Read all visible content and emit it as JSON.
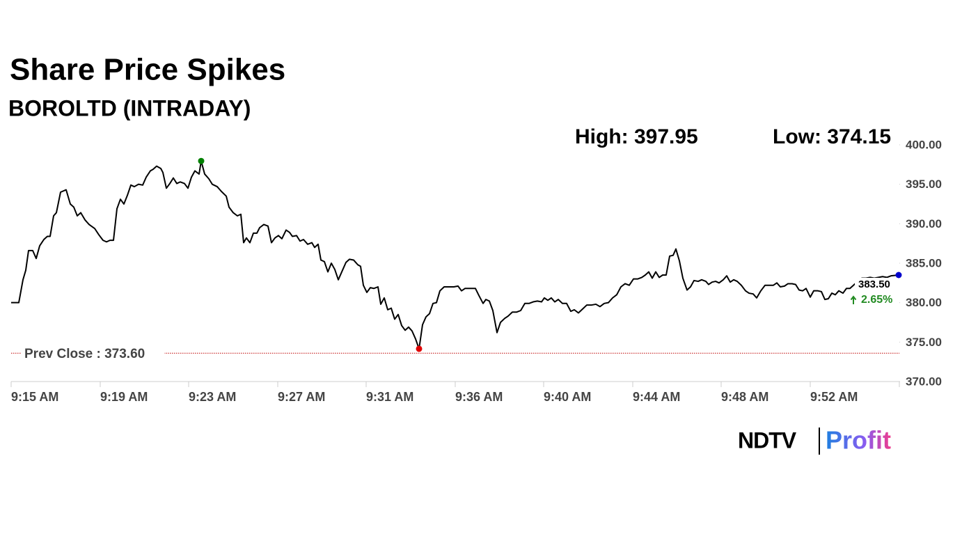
{
  "chart_data": {
    "type": "line",
    "title": "Share Price Spikes",
    "subtitle": "BOROLTD (INTRADAY)",
    "x": [
      0,
      11,
      17,
      21,
      25,
      31,
      36,
      41,
      47,
      52,
      56,
      61,
      65,
      71,
      79,
      85,
      90,
      95,
      100,
      106,
      112,
      120,
      126,
      132,
      137,
      142,
      147,
      152,
      157,
      162,
      167,
      172,
      177,
      183,
      189,
      194,
      200,
      204,
      209,
      215,
      218,
      223,
      228,
      233,
      238,
      243,
      249,
      254,
      259,
      264,
      270,
      273,
      278,
      284,
      289,
      296,
      302,
      309,
      313,
      319,
      325,
      330,
      334,
      338,
      343,
      348,
      353,
      357,
      363,
      369,
      374,
      379,
      384,
      389,
      395,
      400,
      404,
      410,
      415,
      420,
      426,
      432,
      436,
      441,
      445,
      450,
      455,
      460,
      465,
      470,
      476,
      481,
      486,
      492,
      498,
      502,
      506,
      511,
      516,
      521,
      527,
      531,
      536,
      541,
      546,
      551,
      556,
      561,
      566,
      571,
      576,
      581,
      586,
      591,
      596,
      601,
      606,
      611,
      616,
      622,
      629,
      636,
      642,
      647,
      652,
      659,
      667,
      672,
      678,
      682,
      687,
      692,
      698,
      703,
      709,
      714,
      720,
      726,
      732,
      738,
      744,
      750,
      756,
      762,
      766,
      771,
      776,
      781,
      786,
      792,
      798,
      804,
      809,
      815,
      821,
      827,
      834,
      840,
      846,
      852,
      858,
      864,
      870,
      876,
      882,
      888,
      894,
      900,
      906,
      911,
      916,
      921,
      926,
      931,
      936,
      941,
      946,
      951,
      955,
      960,
      965,
      971,
      976,
      981,
      987,
      992,
      998,
      1002,
      1007,
      1012,
      1017,
      1023,
      1028,
      1033,
      1038,
      1043,
      1049,
      1055,
      1060,
      1066,
      1071,
      1077,
      1083,
      1089,
      1095,
      1100,
      1105,
      1111,
      1116,
      1122,
      1127,
      1132,
      1137,
      1142,
      1148,
      1153,
      1159,
      1164,
      1169,
      1174,
      1179,
      1184,
      1189,
      1195,
      1200,
      1205,
      1210,
      1216,
      1222,
      1228,
      1234,
      1240,
      1246,
      1252,
      1258,
      1264,
      1275
    ],
    "series": [
      {
        "color": "#000000",
        "values": [
          380.0,
          380.0,
          382.9,
          384.1,
          386.6,
          386.6,
          385.6,
          387.2,
          388.0,
          388.4,
          388.4,
          391.0,
          391.4,
          394.0,
          394.3,
          392.5,
          392.1,
          391.0,
          391.4,
          390.5,
          389.9,
          389.4,
          388.6,
          387.9,
          387.7,
          387.9,
          387.9,
          391.9,
          393.1,
          392.5,
          393.6,
          394.9,
          394.7,
          395.0,
          394.9,
          395.9,
          396.7,
          396.9,
          397.3,
          397.0,
          396.5,
          394.5,
          395.1,
          395.8,
          395.1,
          395.3,
          395.1,
          394.5,
          395.9,
          396.7,
          396.3,
          397.95,
          396.3,
          395.7,
          395.0,
          394.7,
          394.1,
          393.5,
          392.1,
          391.4,
          391.0,
          391.2,
          387.6,
          388.2,
          387.6,
          388.8,
          388.8,
          389.5,
          389.9,
          389.7,
          387.6,
          388.2,
          388.5,
          388.1,
          389.2,
          388.9,
          388.4,
          388.5,
          387.8,
          388.0,
          387.4,
          387.6,
          387.0,
          387.4,
          385.4,
          385.2,
          383.9,
          385.0,
          384.2,
          382.9,
          384.1,
          385.1,
          385.5,
          385.4,
          384.8,
          384.6,
          382.2,
          381.3,
          381.9,
          381.8,
          382.0,
          379.8,
          380.6,
          379.1,
          379.3,
          377.9,
          378.5,
          377.1,
          376.5,
          376.9,
          376.4,
          375.4,
          374.15,
          377.2,
          378.2,
          378.6,
          379.9,
          380.0,
          381.5,
          382.0,
          382.0,
          382.0,
          382.1,
          381.5,
          381.8,
          381.8,
          381.8,
          380.9,
          379.9,
          380.4,
          380.2,
          379.0,
          376.2,
          377.5,
          378.0,
          378.3,
          378.8,
          378.8,
          379.0,
          379.9,
          379.9,
          380.1,
          380.2,
          380.1,
          380.6,
          380.3,
          380.6,
          380.1,
          380.4,
          379.9,
          379.9,
          378.9,
          379.1,
          378.7,
          379.2,
          379.7,
          379.7,
          379.8,
          379.5,
          379.9,
          380.0,
          380.6,
          381.0,
          382.0,
          382.4,
          382.2,
          383.0,
          383.0,
          383.2,
          383.5,
          383.9,
          383.1,
          383.9,
          383.2,
          383.5,
          383.5,
          385.9,
          386.0,
          386.8,
          385.3,
          383.1,
          381.6,
          382.0,
          382.8,
          382.7,
          382.9,
          382.7,
          382.3,
          382.6,
          382.7,
          382.5,
          382.9,
          383.4,
          382.6,
          382.9,
          382.7,
          382.2,
          381.5,
          381.2,
          381.1,
          380.6,
          381.5,
          382.2,
          382.2,
          382.2,
          382.5,
          382.0,
          382.1,
          382.4,
          382.4,
          382.3,
          381.6,
          381.5,
          381.8,
          380.7,
          381.5,
          381.5,
          381.4,
          380.4,
          380.5,
          381.2,
          381.0,
          381.5,
          381.2,
          381.8,
          381.8,
          382.2,
          382.7,
          383.1,
          383.1,
          383.2,
          383.1,
          383.2,
          383.3,
          383.2,
          383.4,
          383.5
        ]
      }
    ],
    "xlim": [
      0,
      1276
    ],
    "xticks": [
      {
        "value": 0,
        "label": "9:15 AM"
      },
      {
        "value": 128,
        "label": "9:19 AM"
      },
      {
        "value": 255,
        "label": "9:23 AM"
      },
      {
        "value": 383,
        "label": "9:27 AM"
      },
      {
        "value": 510,
        "label": "9:31 AM"
      },
      {
        "value": 638,
        "label": "9:36 AM"
      },
      {
        "value": 765,
        "label": "9:40 AM"
      },
      {
        "value": 893,
        "label": "9:44 AM"
      },
      {
        "value": 1020,
        "label": "9:48 AM"
      },
      {
        "value": 1148,
        "label": "9:52 AM"
      }
    ],
    "ylim": [
      370,
      400
    ],
    "yticks": [
      {
        "value": 370,
        "label": "370.00"
      },
      {
        "value": 375,
        "label": "375.00"
      },
      {
        "value": 380,
        "label": "380.00"
      },
      {
        "value": 385,
        "label": "385.00"
      },
      {
        "value": 390,
        "label": "390.00"
      },
      {
        "value": 395,
        "label": "395.00"
      },
      {
        "value": 400,
        "label": "400.00"
      }
    ],
    "high": {
      "label": "High: 397.95",
      "color": "#008000"
    },
    "low": {
      "label": "Low: 374.15",
      "color": "#e00000"
    },
    "last": {
      "label": "383.50",
      "change": "2.65%",
      "color": "#0000cc",
      "change_color": "#228b22"
    },
    "prev_close": {
      "label": "Prev Close : 373.60",
      "value": 373.6,
      "color": "#c00000"
    },
    "brand": {
      "left": "NDTV",
      "right": "Profit"
    }
  }
}
